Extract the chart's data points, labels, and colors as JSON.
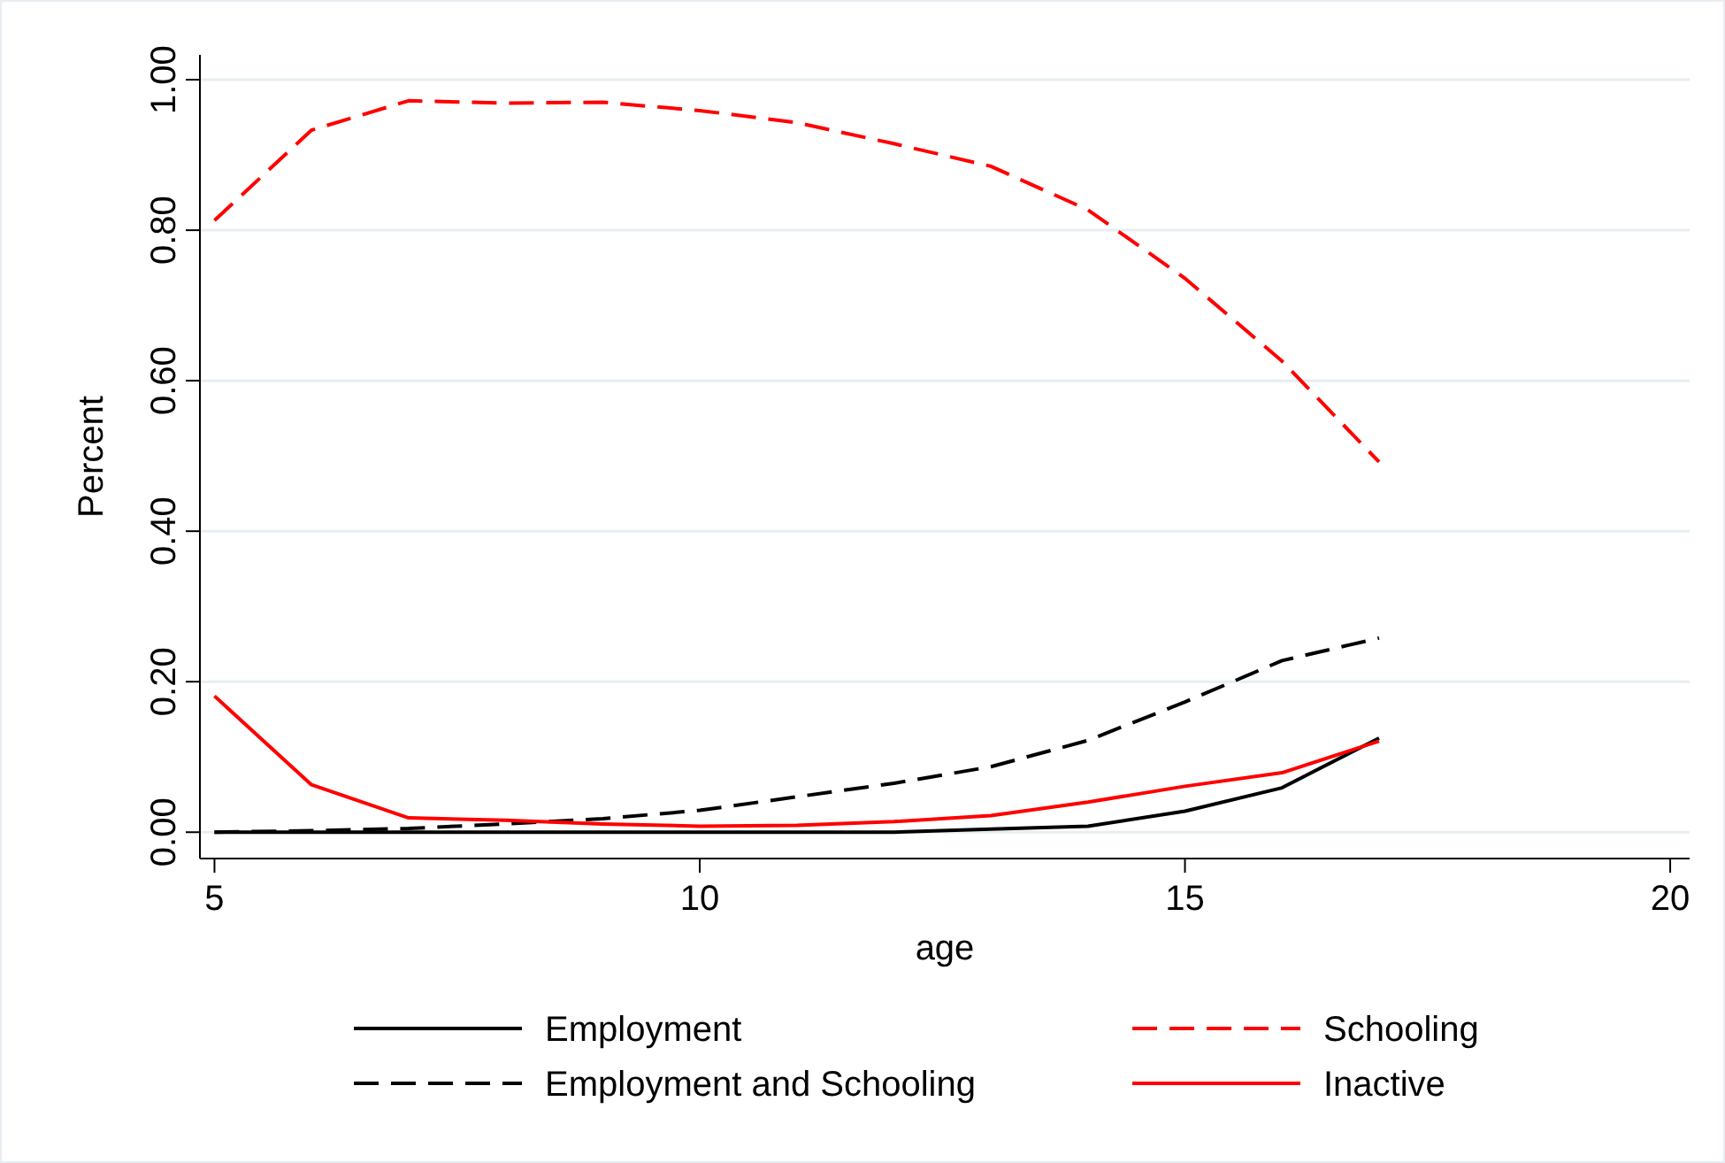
{
  "chart_data": {
    "type": "line",
    "xlabel": "age",
    "ylabel": "Percent",
    "x": [
      5,
      6,
      7,
      8,
      9,
      10,
      11,
      12,
      13,
      14,
      15,
      16,
      17
    ],
    "xlim": [
      4.85,
      20.2
    ],
    "xticks": [
      5,
      10,
      15,
      20
    ],
    "ylim": [
      -0.035,
      1.033
    ],
    "yticks": [
      {
        "value": 0,
        "label": "0.00"
      },
      {
        "value": 0.2,
        "label": "0.20"
      },
      {
        "value": 0.4,
        "label": "0.40"
      },
      {
        "value": 0.6,
        "label": "0.60"
      },
      {
        "value": 0.8,
        "label": "0.80"
      },
      {
        "value": 1,
        "label": "1.00"
      }
    ],
    "grid": "y",
    "legend": "bottom",
    "marker": "none",
    "series": [
      {
        "name": "Employment",
        "color": "#000000",
        "line_style": "solid",
        "values": [
          0,
          0,
          0,
          0,
          0,
          0,
          0,
          0,
          0.004,
          0.008,
          0.028,
          0.059,
          0.125
        ]
      },
      {
        "name": "Schooling",
        "color": "#ff0000",
        "line_style": "dashed",
        "values": [
          0.813,
          0.933,
          0.972,
          0.969,
          0.97,
          0.959,
          0.943,
          0.915,
          0.885,
          0.827,
          0.736,
          0.626,
          0.492
        ]
      },
      {
        "name": "Employment and Schooling",
        "color": "#000000",
        "line_style": "dashed",
        "values": [
          0,
          0.002,
          0.005,
          0.011,
          0.018,
          0.029,
          0.047,
          0.065,
          0.087,
          0.122,
          0.173,
          0.228,
          0.258
        ]
      },
      {
        "name": "Inactive",
        "color": "#ff0000",
        "line_style": "solid",
        "values": [
          0.181,
          0.063,
          0.019,
          0.016,
          0.011,
          0.008,
          0.009,
          0.014,
          0.022,
          0.04,
          0.061,
          0.079,
          0.121
        ]
      }
    ]
  }
}
